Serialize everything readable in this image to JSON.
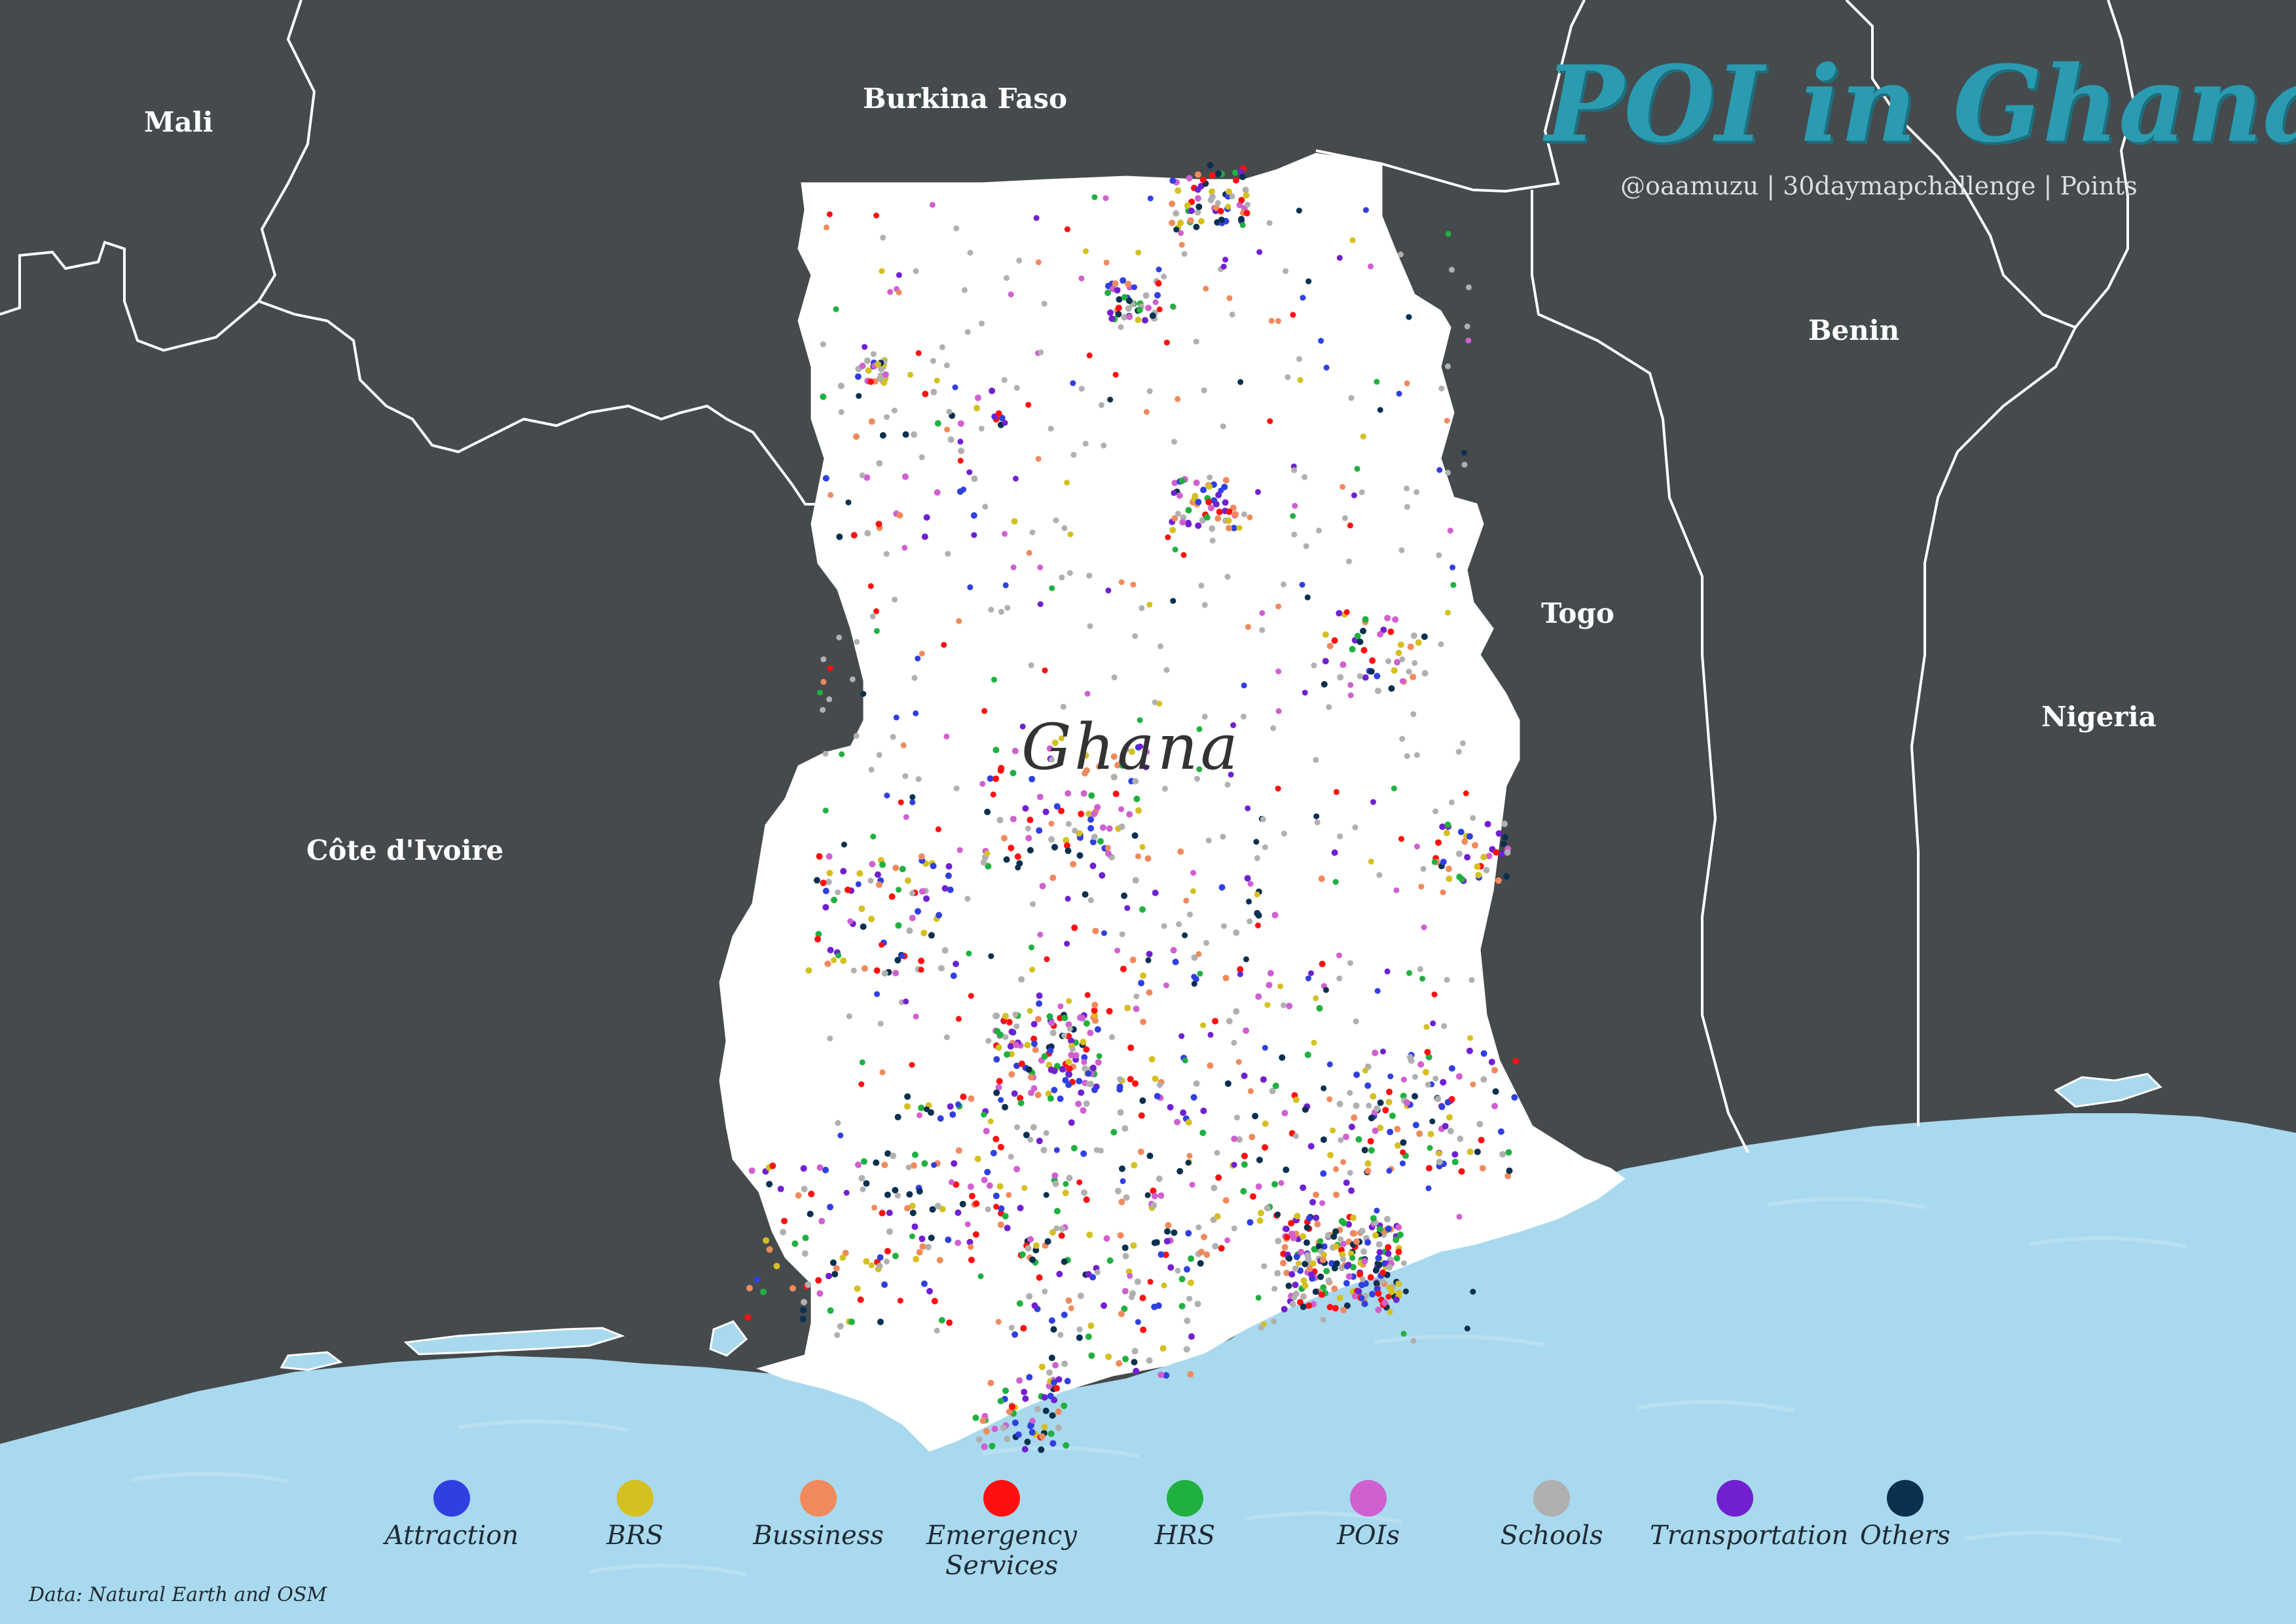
{
  "title": "POI in Ghana",
  "subtitle": "@oaamuzu | 30daymapchallenge | Points",
  "source": "Data: Natural Earth and OSM",
  "ghana_label": "Ghana",
  "countries": {
    "mali": "Mali",
    "burkina": "Burkina Faso",
    "benin": "Benin",
    "togo": "Togo",
    "nigeria": "Nigeria",
    "cote": "Côte d'Ivoire"
  },
  "colors": {
    "land": "#454a4d",
    "ghana": "#ffffff",
    "sea": "#a9d9ee",
    "title": "#2a9bb0"
  },
  "legend": [
    {
      "label": "Attraction",
      "color": "#3040e0"
    },
    {
      "label": "BRS",
      "color": "#d4c020"
    },
    {
      "label": "Bussiness",
      "color": "#f08a5d"
    },
    {
      "label": "Emergency Services",
      "color": "#ff1010"
    },
    {
      "label": "HRS",
      "color": "#20b040"
    },
    {
      "label": "POIs",
      "color": "#d060d0"
    },
    {
      "label": "Schools",
      "color": "#b0b0b0"
    },
    {
      "label": "Transportation",
      "color": "#7020d0"
    },
    {
      "label": "Others",
      "color": "#0a3050"
    }
  ]
}
